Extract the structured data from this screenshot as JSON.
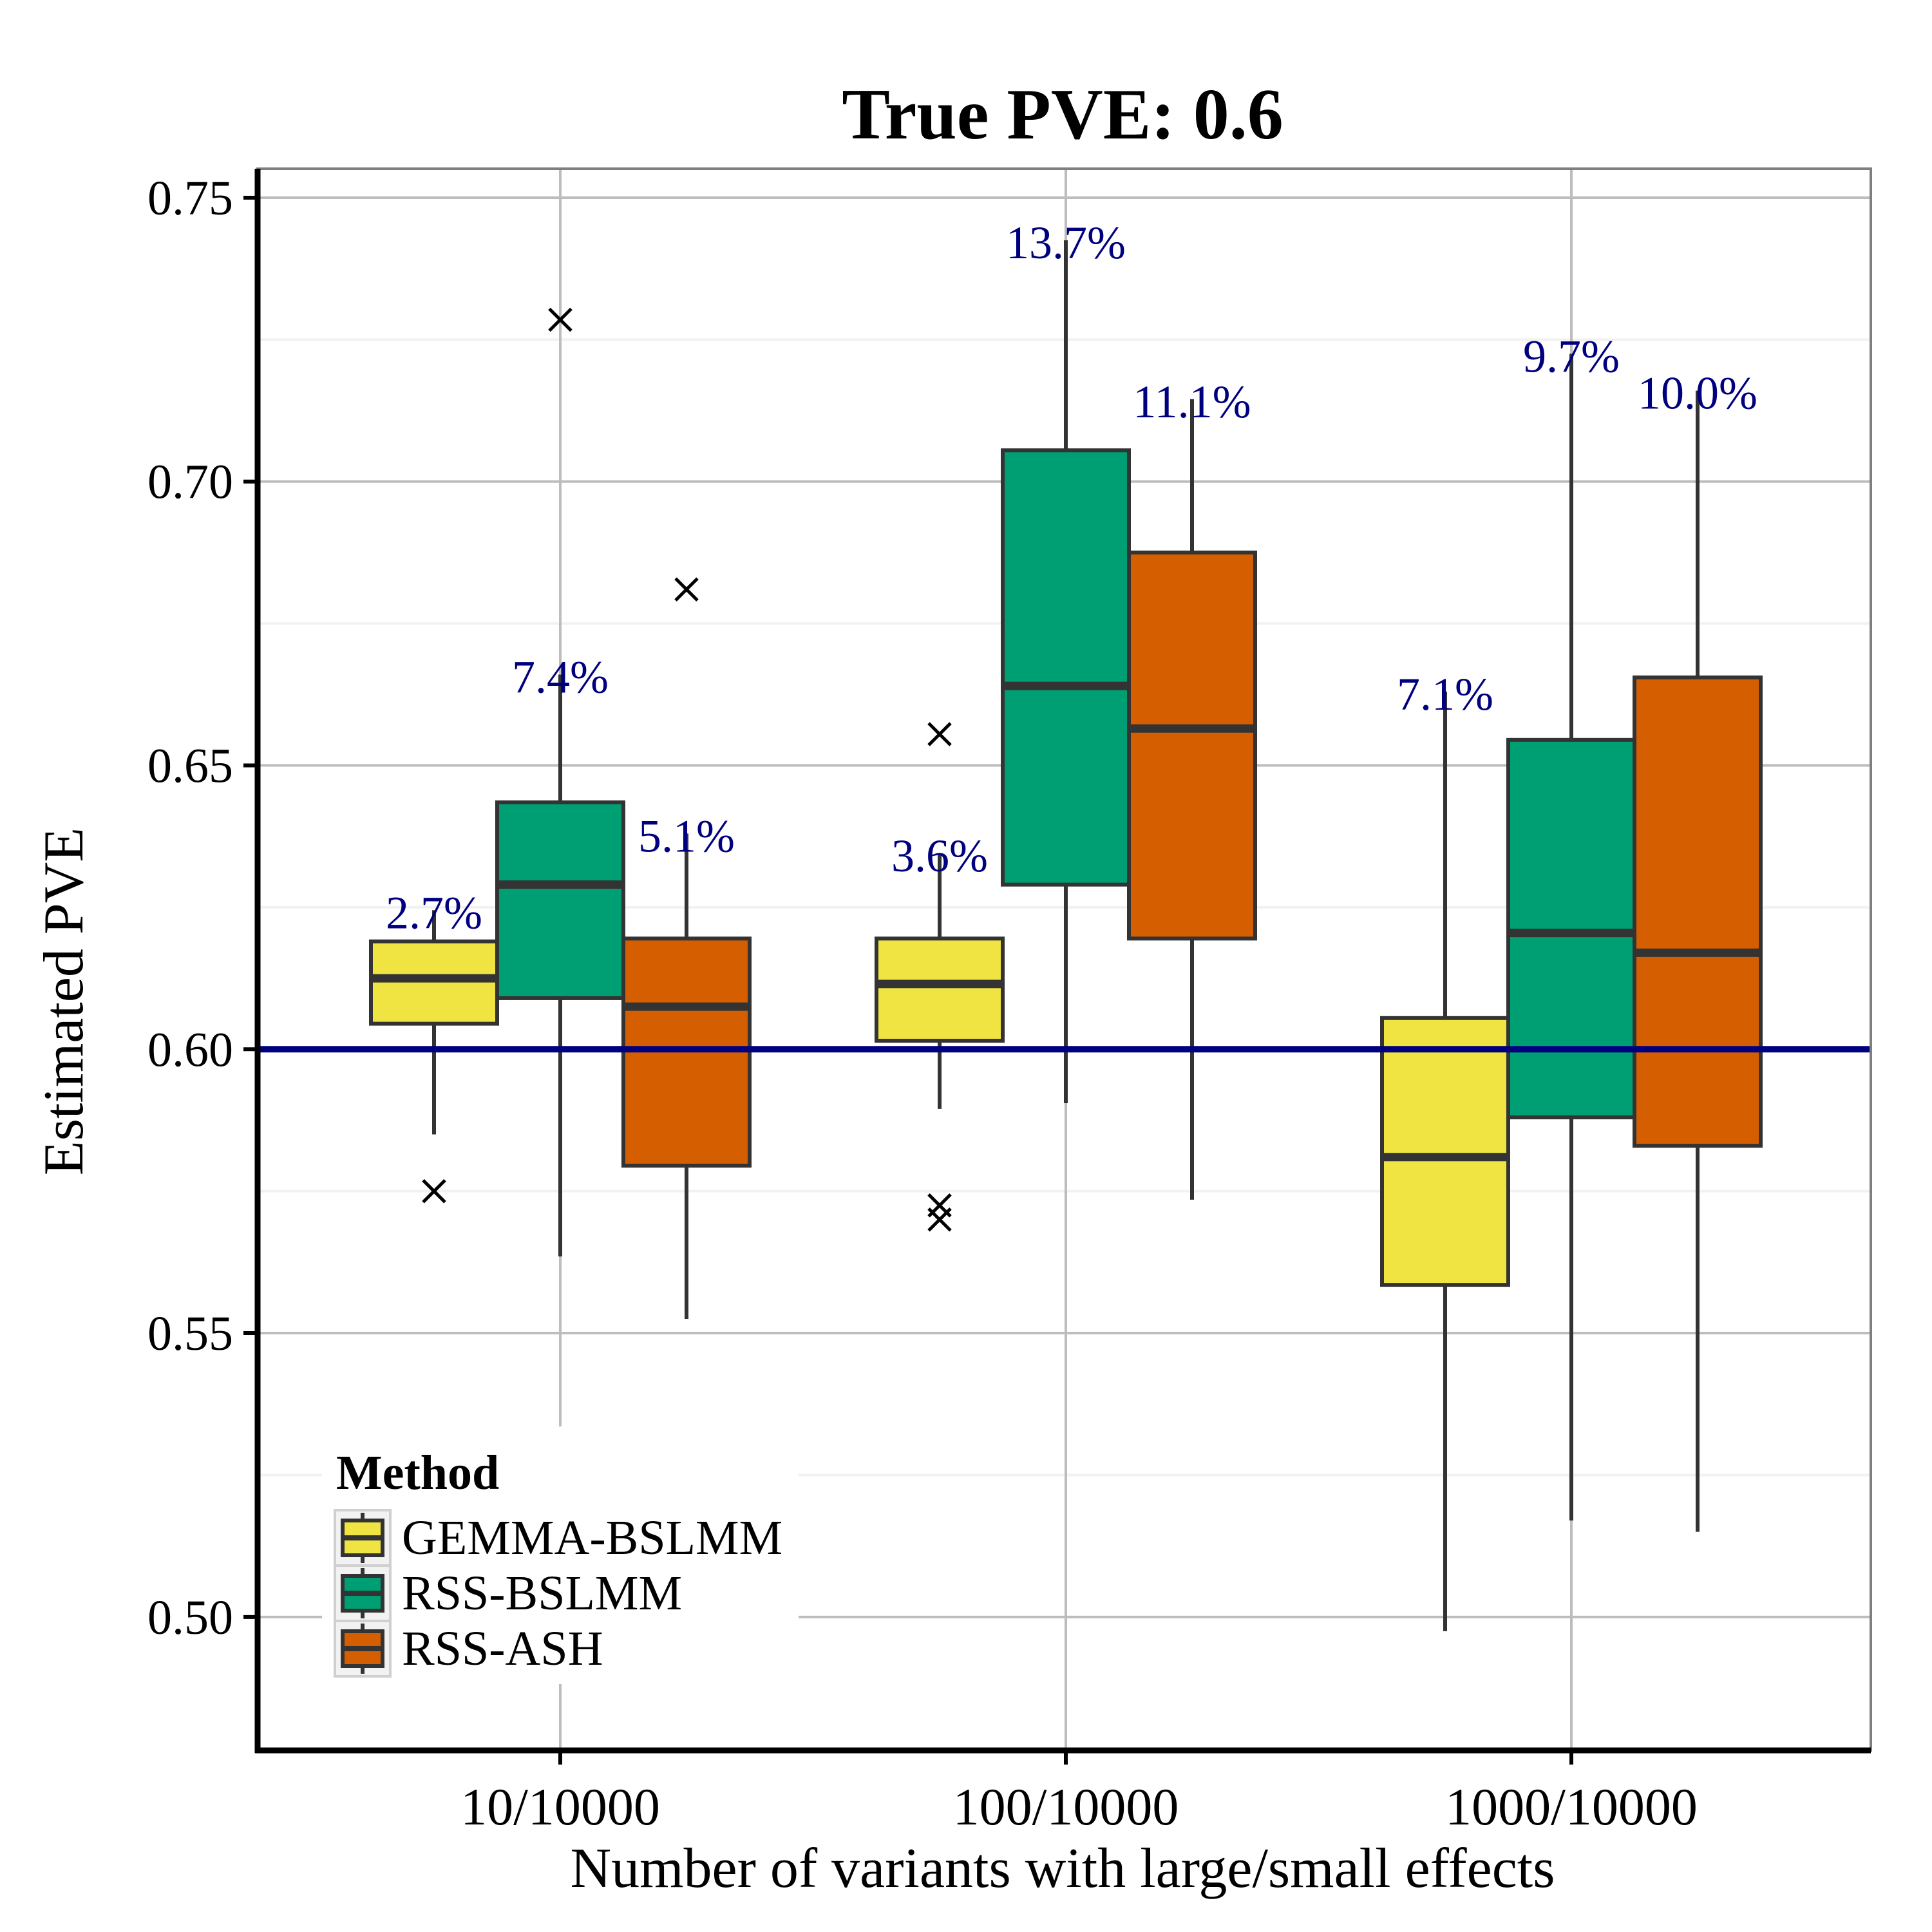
{
  "chart_data": {
    "type": "box",
    "title": "True PVE: 0.6",
    "xlabel": "Number of variants with large/small effects",
    "ylabel": "Estimated PVE",
    "categories": [
      "10/10000",
      "100/10000",
      "1000/10000"
    ],
    "ylim": [
      0.4765,
      0.7551
    ],
    "yticks": [
      "0.50",
      "0.55",
      "0.60",
      "0.65",
      "0.70",
      "0.75"
    ],
    "reference_line": {
      "value": 0.6,
      "color": "#00007f"
    },
    "legend": {
      "title": "Method",
      "position": "bottom-left",
      "entries": [
        "GEMMA-BSLMM",
        "RSS-BSLMM",
        "RSS-ASH"
      ]
    },
    "series": [
      {
        "name": "GEMMA-BSLMM",
        "color": "#f0e442",
        "boxes": [
          {
            "min": 0.585,
            "q1": 0.6045,
            "median": 0.6125,
            "q3": 0.619,
            "max": 0.6245,
            "outliers": [
              0.575
            ],
            "label": "2.7%"
          },
          {
            "min": 0.5895,
            "q1": 0.6015,
            "median": 0.6115,
            "q3": 0.6195,
            "max": 0.6345,
            "outliers": [
              0.5725,
              0.57,
              0.6555
            ],
            "label": "3.6%"
          },
          {
            "min": 0.4975,
            "q1": 0.5585,
            "median": 0.581,
            "q3": 0.6055,
            "max": 0.663,
            "outliers": [],
            "label": "7.1%"
          }
        ]
      },
      {
        "name": "RSS-BSLMM",
        "color": "#009e73",
        "boxes": [
          {
            "min": 0.5635,
            "q1": 0.609,
            "median": 0.629,
            "q3": 0.6435,
            "max": 0.666,
            "outliers": [
              0.7285
            ],
            "label": "7.4%"
          },
          {
            "min": 0.5905,
            "q1": 0.629,
            "median": 0.664,
            "q3": 0.7055,
            "max": 0.7425,
            "outliers": [],
            "label": "13.7%"
          },
          {
            "min": 0.517,
            "q1": 0.588,
            "median": 0.6205,
            "q3": 0.6545,
            "max": 0.7225,
            "outliers": [],
            "label": "9.7%"
          }
        ]
      },
      {
        "name": "RSS-ASH",
        "color": "#d55e00",
        "boxes": [
          {
            "min": 0.5525,
            "q1": 0.5795,
            "median": 0.6075,
            "q3": 0.6195,
            "max": 0.638,
            "outliers": [
              0.681
            ],
            "label": "5.1%"
          },
          {
            "min": 0.5735,
            "q1": 0.6195,
            "median": 0.6565,
            "q3": 0.6875,
            "max": 0.7145,
            "outliers": [],
            "label": "11.1%"
          },
          {
            "min": 0.515,
            "q1": 0.583,
            "median": 0.617,
            "q3": 0.6655,
            "max": 0.716,
            "outliers": [],
            "label": "10.0%"
          }
        ]
      }
    ]
  }
}
